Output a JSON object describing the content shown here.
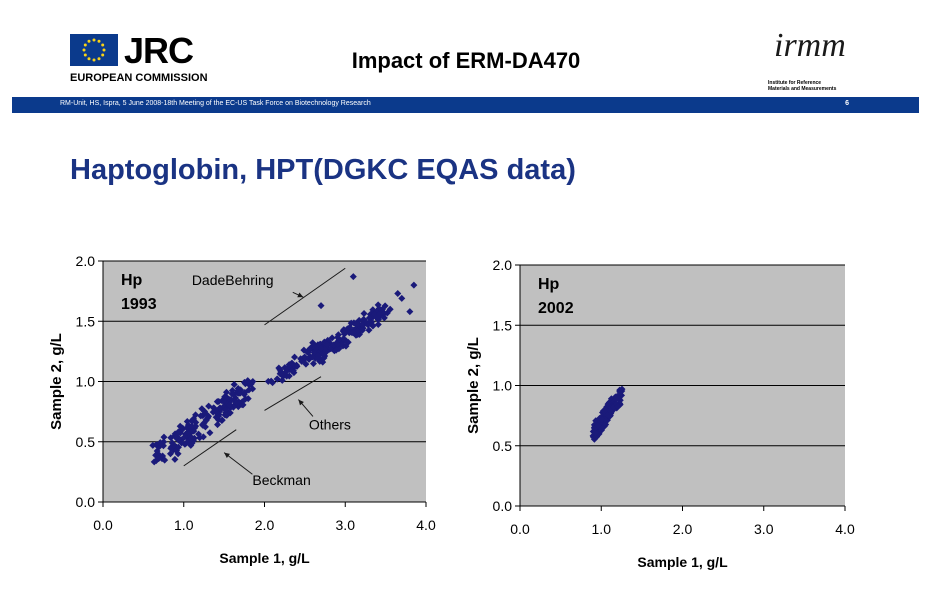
{
  "header": {
    "title": "Impact of ERM-DA470",
    "logo_left": {
      "name": "JRC",
      "subtitle": "EUROPEAN COMMISSION"
    },
    "logo_right": {
      "mark": "irmm",
      "subtitle_line1": "Institute for Reference",
      "subtitle_line2": "Materials and Measurements"
    },
    "banner_text": "RM-Unit, HS, Ispra, 5 June 2008-18th Meeting of the EC-US Task Force on Biotechnology Research",
    "page_number": "6",
    "banner_color": "#0b3a8c"
  },
  "slide": {
    "title": "Haptoglobin, HPT(DGKC EQAS data)",
    "title_color": "#1a3383"
  },
  "chart_data": [
    {
      "type": "scatter",
      "title": "",
      "label_lines": [
        "Hp",
        "1993"
      ],
      "xlabel": "Sample 1, g/L",
      "ylabel": "Sample 2, g/L",
      "xlim": [
        0,
        4
      ],
      "ylim": [
        0,
        2
      ],
      "xticks": [
        "0.0",
        "1.0",
        "2.0",
        "3.0",
        "4.0"
      ],
      "yticks": [
        "0.0",
        "0.5",
        "1.0",
        "1.5",
        "2.0"
      ],
      "grid": "horizontal",
      "background": "#c0c0c0",
      "marker_color": "#1a1a7a",
      "clusters": [
        {
          "x": [
            0.7,
            1.8
          ],
          "y": [
            0.38,
            0.95
          ],
          "n": 180
        },
        {
          "x": [
            2.1,
            2.7
          ],
          "y": [
            1.0,
            1.3
          ],
          "n": 60
        },
        {
          "x": [
            2.6,
            3.5
          ],
          "y": [
            1.2,
            1.6
          ],
          "n": 130
        }
      ],
      "extra_points": [
        {
          "x": 3.1,
          "y": 1.87
        },
        {
          "x": 2.7,
          "y": 1.63
        },
        {
          "x": 3.65,
          "y": 1.73
        },
        {
          "x": 3.85,
          "y": 1.8
        },
        {
          "x": 3.8,
          "y": 1.58
        },
        {
          "x": 3.7,
          "y": 1.69
        }
      ],
      "reference_lines": [
        {
          "label": "DadeBehring",
          "from": {
            "x": 2.0,
            "y": 1.47
          },
          "to": {
            "x": 3.0,
            "y": 1.94
          }
        },
        {
          "label": "Others",
          "from": {
            "x": 2.0,
            "y": 0.76
          },
          "to": {
            "x": 2.7,
            "y": 1.04
          }
        },
        {
          "label": "Beckman",
          "from": {
            "x": 1.0,
            "y": 0.3
          },
          "to": {
            "x": 1.65,
            "y": 0.6
          }
        }
      ],
      "annotations": [
        {
          "text": "DadeBehring",
          "text_at": {
            "x": 1.1,
            "y": 1.8
          },
          "arrow_from": {
            "x": 2.35,
            "y": 1.74
          },
          "arrow_to": {
            "x": 2.48,
            "y": 1.7
          }
        },
        {
          "text": "Others",
          "text_at": {
            "x": 2.55,
            "y": 0.6
          },
          "arrow_from": {
            "x": 2.6,
            "y": 0.71
          },
          "arrow_to": {
            "x": 2.42,
            "y": 0.85
          }
        },
        {
          "text": "Beckman",
          "text_at": {
            "x": 1.85,
            "y": 0.14
          },
          "arrow_from": {
            "x": 1.85,
            "y": 0.23
          },
          "arrow_to": {
            "x": 1.5,
            "y": 0.41
          }
        }
      ]
    },
    {
      "type": "scatter",
      "title": "",
      "label_lines": [
        "Hp",
        "2002"
      ],
      "xlabel": "Sample 1, g/L",
      "ylabel": "Sample 2, g/L",
      "xlim": [
        0,
        4
      ],
      "ylim": [
        0,
        2
      ],
      "xticks": [
        "0.0",
        "1.0",
        "2.0",
        "3.0",
        "4.0"
      ],
      "yticks": [
        "0.0",
        "0.5",
        "1.0",
        "1.5",
        "2.0"
      ],
      "grid": "horizontal",
      "background": "#c0c0c0",
      "marker_color": "#1a1a7a",
      "clusters": [
        {
          "x": [
            0.9,
            1.25
          ],
          "y": [
            0.6,
            0.93
          ],
          "n": 110
        }
      ],
      "extra_points": [],
      "reference_lines": [],
      "annotations": []
    }
  ]
}
